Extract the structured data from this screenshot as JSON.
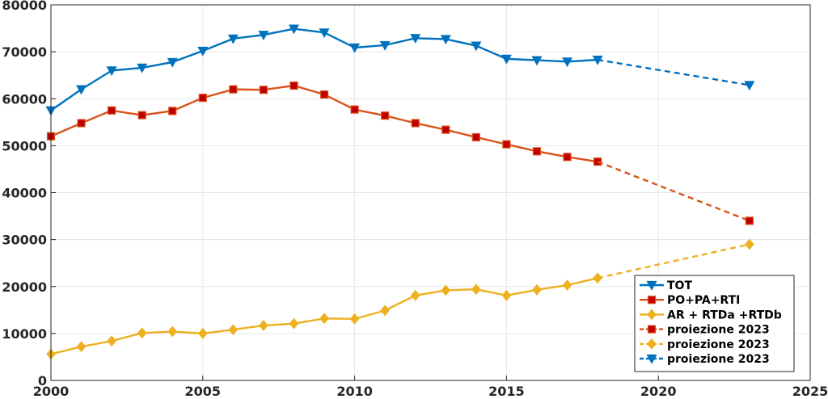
{
  "chart_data": {
    "type": "line",
    "title": "",
    "xlabel": "",
    "ylabel": "",
    "xlim": [
      2000,
      2025
    ],
    "ylim": [
      0,
      80000
    ],
    "xticks": [
      2000,
      2005,
      2010,
      2015,
      2020,
      2025
    ],
    "yticks": [
      0,
      10000,
      20000,
      30000,
      40000,
      50000,
      60000,
      70000,
      80000
    ],
    "grid": true,
    "legend_position": "bottom-right",
    "series": [
      {
        "name": "TOT",
        "color": "#0072BD",
        "marker": "triangle-down",
        "line_style": "solid",
        "x": [
          2000,
          2001,
          2002,
          2003,
          2004,
          2005,
          2006,
          2007,
          2008,
          2009,
          2010,
          2011,
          2012,
          2013,
          2014,
          2015,
          2016,
          2017,
          2018
        ],
        "y": [
          57500,
          62000,
          66000,
          66600,
          67800,
          70200,
          72800,
          73600,
          74900,
          74100,
          70900,
          71400,
          72900,
          72700,
          71300,
          68500,
          68200,
          67900,
          68300
        ]
      },
      {
        "name": "PO+PA+RTI",
        "color": "#D95319",
        "marker_color": "#C00000",
        "marker": "square",
        "line_style": "solid",
        "x": [
          2000,
          2001,
          2002,
          2003,
          2004,
          2005,
          2006,
          2007,
          2008,
          2009,
          2010,
          2011,
          2012,
          2013,
          2014,
          2015,
          2016,
          2017,
          2018
        ],
        "y": [
          52000,
          54800,
          57500,
          56500,
          57400,
          60200,
          62000,
          61900,
          62800,
          60900,
          57700,
          56400,
          54800,
          53400,
          51800,
          50300,
          48800,
          47600,
          46600
        ]
      },
      {
        "name": "AR + RTDa +RTDb",
        "color": "#EDB120",
        "marker": "diamond",
        "line_style": "solid",
        "x": [
          2000,
          2001,
          2002,
          2003,
          2004,
          2005,
          2006,
          2007,
          2008,
          2009,
          2010,
          2011,
          2012,
          2013,
          2014,
          2015,
          2016,
          2017,
          2018
        ],
        "y": [
          5600,
          7200,
          8400,
          10100,
          10400,
          10000,
          10800,
          11700,
          12100,
          13200,
          13100,
          14900,
          18100,
          19200,
          19400,
          18100,
          19300,
          20300,
          21800
        ]
      },
      {
        "name": "proiezione 2023",
        "color": "#D95319",
        "marker_color": "#C00000",
        "marker": "square",
        "line_style": "dashed",
        "x": [
          2018,
          2023
        ],
        "y": [
          46600,
          34000
        ]
      },
      {
        "name": "proiezione 2023",
        "color": "#EDB120",
        "marker": "diamond",
        "line_style": "dashed",
        "x": [
          2018,
          2023
        ],
        "y": [
          21800,
          29000
        ]
      },
      {
        "name": "proiezione 2023",
        "color": "#0072BD",
        "marker": "triangle-down",
        "line_style": "dashed",
        "x": [
          2018,
          2023
        ],
        "y": [
          68300,
          62900
        ]
      }
    ]
  }
}
